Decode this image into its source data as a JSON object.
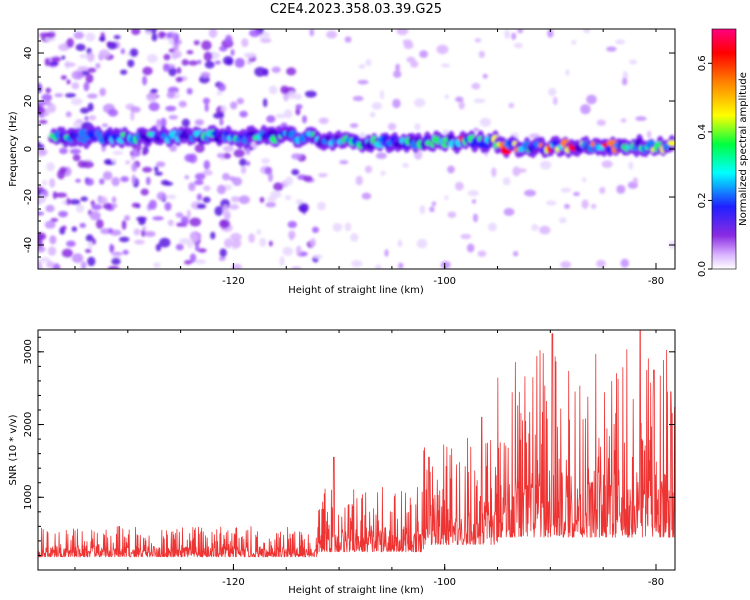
{
  "title": "C2E4.2023.358.03.39.G25",
  "chart_data": [
    {
      "type": "heatmap",
      "xlabel": "Height of straight line (km)",
      "ylabel": "Frequency (Hz)",
      "xlim": [
        -138.5,
        -78.2
      ],
      "ylim": [
        -50,
        50
      ],
      "xticks": [
        -120,
        -100,
        -80
      ],
      "yticks": [
        40,
        20,
        0,
        -20,
        -40
      ],
      "colorbar": {
        "label": "Normalized spectral amplitude",
        "range": [
          0,
          0.7
        ],
        "ticks": [
          0.0,
          0.2,
          0.4,
          0.6
        ]
      },
      "ridge": {
        "frequency_hz": 3,
        "bands": [
          {
            "x_start": -137,
            "x_end": -112,
            "freq_hz": 5
          },
          {
            "x_start": -112,
            "x_end": -95,
            "freq_hz": 3
          },
          {
            "x_start": -95,
            "x_end": -78.2,
            "freq_hz": 1
          }
        ]
      }
    },
    {
      "type": "line",
      "xlabel": "Height of straight line (km)",
      "ylabel": "SNR (10 * v/v)",
      "xlim": [
        -138.5,
        -78.2
      ],
      "ylim": [
        0,
        3300
      ],
      "xticks": [
        -120,
        -100,
        -80
      ],
      "yticks": [
        1000,
        2000,
        3000
      ],
      "series": [
        {
          "color": "#ee3333",
          "segments": [
            {
              "x_start": -138.5,
              "x_end": -112,
              "base": 180,
              "spread": 420
            },
            {
              "x_start": -112,
              "x_end": -102,
              "base": 250,
              "spread": 900
            },
            {
              "x_start": -102,
              "x_end": -95,
              "base": 350,
              "spread": 1500
            },
            {
              "x_start": -95,
              "x_end": -78.2,
              "base": 450,
              "spread": 2600
            }
          ],
          "peaks": [
            {
              "x": -110.5,
              "y": 1550
            },
            {
              "x": -101.5,
              "y": 1550
            },
            {
              "x": -96.5,
              "y": 2100
            },
            {
              "x": -89.8,
              "y": 3250
            },
            {
              "x": -81.5,
              "y": 3300
            },
            {
              "x": -80.2,
              "y": 2750
            },
            {
              "x": -78.6,
              "y": 2450
            }
          ]
        }
      ]
    }
  ]
}
